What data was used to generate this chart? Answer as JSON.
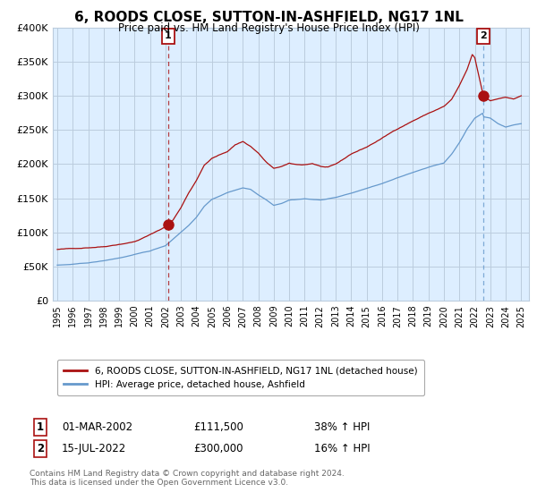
{
  "title": "6, ROODS CLOSE, SUTTON-IN-ASHFIELD, NG17 1NL",
  "subtitle": "Price paid vs. HM Land Registry's House Price Index (HPI)",
  "legend_line1": "6, ROODS CLOSE, SUTTON-IN-ASHFIELD, NG17 1NL (detached house)",
  "legend_line2": "HPI: Average price, detached house, Ashfield",
  "annotation1_date": "01-MAR-2002",
  "annotation1_price": "£111,500",
  "annotation1_pct": "38% ↑ HPI",
  "annotation2_date": "15-JUL-2022",
  "annotation2_price": "£300,000",
  "annotation2_pct": "16% ↑ HPI",
  "footnote": "Contains HM Land Registry data © Crown copyright and database right 2024.\nThis data is licensed under the Open Government Licence v3.0.",
  "property_color": "#aa1111",
  "hpi_color": "#6699cc",
  "marker1_x": 2002.17,
  "marker1_y": 111500,
  "marker2_x": 2022.54,
  "marker2_y": 300000,
  "ylim": [
    0,
    400000
  ],
  "xlim_start": 1994.7,
  "xlim_end": 2025.5,
  "plot_bg_color": "#ddeeff",
  "bg_color": "#ffffff",
  "grid_color": "#bbccdd"
}
